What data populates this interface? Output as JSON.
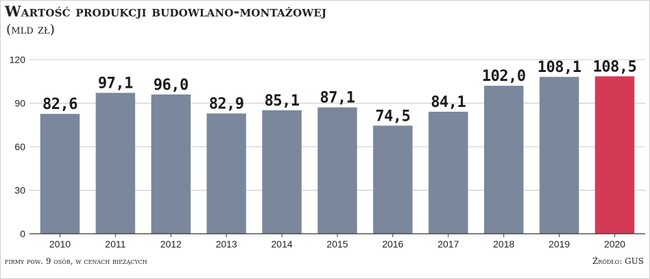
{
  "header": {
    "title": "Wartość produkcji budowlano-montażowej",
    "subtitle": "(mld zł)"
  },
  "footer": {
    "note": "firmy pow. 9 osób, w cenach bieżących",
    "source": "Źródło: GUS"
  },
  "colors": {
    "bar": "#7a879c",
    "highlight": "#d43a55",
    "grid": "#c8c8c8",
    "axis": "#333333",
    "label": "#1a1a1a"
  },
  "chart_data": {
    "type": "bar",
    "categories": [
      "2010",
      "2011",
      "2012",
      "2013",
      "2014",
      "2015",
      "2016",
      "2017",
      "2018",
      "2019",
      "2020"
    ],
    "values": [
      82.6,
      97.1,
      96.0,
      82.9,
      85.1,
      87.1,
      74.5,
      84.1,
      102.0,
      108.1,
      108.5
    ],
    "value_labels": [
      "82,6",
      "97,1",
      "96,0",
      "82,9",
      "85,1",
      "87,1",
      "74,5",
      "84,1",
      "102,0",
      "108,1",
      "108,5"
    ],
    "highlight_category": "2020",
    "yticks": [
      0,
      30,
      60,
      90,
      120
    ],
    "ylim": [
      0,
      120
    ],
    "grid": true,
    "legend": "none"
  }
}
